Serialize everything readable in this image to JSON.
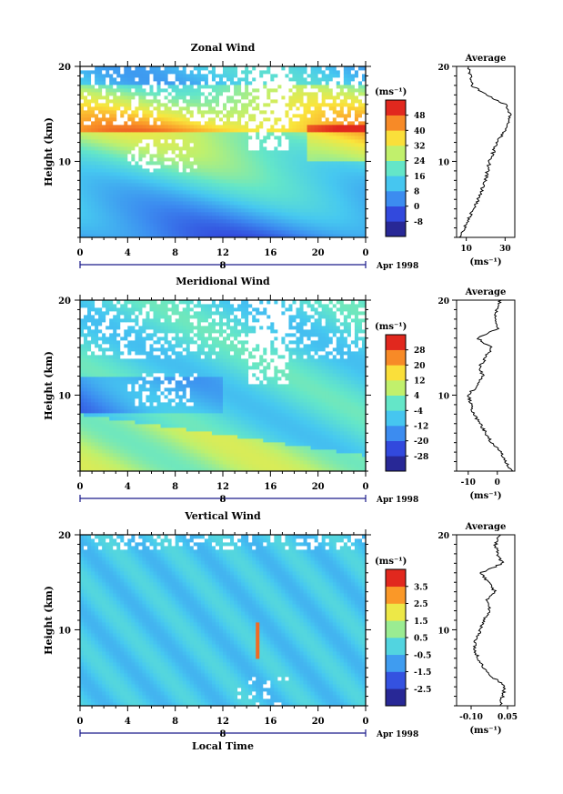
{
  "chart_data": [
    {
      "type": "heatmap",
      "title": "Zonal Wind",
      "ylabel": "Height (km)",
      "xlabel": "",
      "y_ticks": [
        10,
        20
      ],
      "x_ticks": [
        "0",
        "4",
        "8",
        "12",
        "16",
        "20",
        "0"
      ],
      "date_label": "8",
      "date_suffix": "Apr 1998",
      "ylim": [
        2,
        20
      ],
      "xlim": [
        0,
        24
      ],
      "colorbar": {
        "unit_label": "(ms⁻¹)",
        "levels": [
          -8,
          0,
          8,
          16,
          24,
          32,
          40,
          48
        ],
        "range": [
          -12,
          52
        ]
      },
      "average_profile": {
        "title": "Average",
        "xlabel": "(ms⁻¹)",
        "x_ticks": [
          10,
          30
        ],
        "xlim": [
          5,
          35
        ],
        "heights": [
          2,
          3,
          4,
          5,
          6,
          7,
          8,
          9,
          10,
          11,
          12,
          13,
          14,
          15,
          16,
          17,
          18,
          19,
          20
        ],
        "values": [
          7,
          9,
          11,
          14,
          16,
          18,
          20,
          21,
          22,
          24,
          26,
          29,
          32,
          33,
          30,
          20,
          13,
          12,
          11
        ]
      }
    },
    {
      "type": "heatmap",
      "title": "Meridional Wind",
      "ylabel": "Height (km)",
      "xlabel": "",
      "y_ticks": [
        10,
        20
      ],
      "x_ticks": [
        "0",
        "4",
        "8",
        "12",
        "16",
        "20",
        "0"
      ],
      "date_label": "8",
      "date_suffix": "Apr 1998",
      "ylim": [
        2,
        20
      ],
      "xlim": [
        0,
        24
      ],
      "colorbar": {
        "unit_label": "(ms⁻¹)",
        "levels": [
          -28,
          -20,
          -12,
          -4,
          4,
          12,
          20,
          28
        ],
        "range": [
          -32,
          32
        ]
      },
      "average_profile": {
        "title": "Average",
        "xlabel": "(ms⁻¹)",
        "x_ticks": [
          -10,
          0
        ],
        "xlim": [
          -14,
          6
        ],
        "heights": [
          2,
          3,
          4,
          5,
          6,
          7,
          8,
          9,
          10,
          11,
          12,
          13,
          14,
          15,
          16,
          17,
          18,
          19,
          20
        ],
        "values": [
          5,
          3,
          1,
          -2,
          -4,
          -6,
          -8,
          -9,
          -10,
          -7,
          -5,
          -6,
          -4,
          -2,
          -7,
          0,
          -1,
          0,
          1
        ]
      }
    },
    {
      "type": "heatmap",
      "title": "Vertical Wind",
      "ylabel": "Height (km)",
      "xlabel": "Local Time",
      "y_ticks": [
        10,
        20
      ],
      "x_ticks": [
        "0",
        "4",
        "8",
        "12",
        "16",
        "20",
        "0"
      ],
      "date_label": "8",
      "date_suffix": "Apr 1998",
      "ylim": [
        2,
        20
      ],
      "xlim": [
        0,
        24
      ],
      "colorbar": {
        "unit_label": "(ms⁻¹)",
        "levels": [
          -2.5,
          -1.5,
          -0.5,
          0.5,
          1.5,
          2.5,
          3.5
        ],
        "range": [
          -3,
          4
        ]
      },
      "average_profile": {
        "title": "Average",
        "xlabel": "(ms⁻¹)",
        "x_ticks": [
          "-0.10",
          "0.05"
        ],
        "xlim": [
          -0.16,
          0.08
        ],
        "heights": [
          2,
          3,
          4,
          5,
          6,
          7,
          8,
          9,
          10,
          11,
          12,
          13,
          14,
          15,
          16,
          17,
          18,
          19,
          20
        ],
        "values": [
          0.02,
          0.03,
          0.04,
          -0.01,
          -0.05,
          -0.07,
          -0.09,
          -0.08,
          -0.06,
          -0.05,
          -0.02,
          -0.04,
          0.0,
          -0.03,
          -0.06,
          0.03,
          0.01,
          0.0,
          0.02
        ]
      }
    }
  ]
}
